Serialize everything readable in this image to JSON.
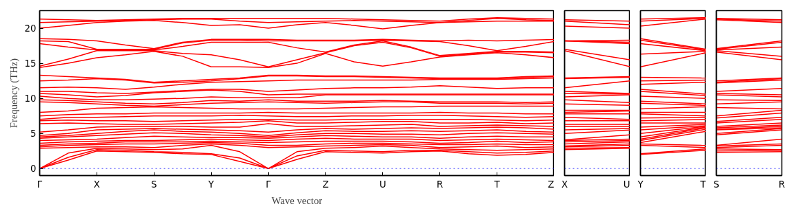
{
  "chart_data": [
    {
      "type": "line",
      "xlabel": "Wave vector",
      "ylabel": "Frequency (THz)",
      "grid": false,
      "marker": "none",
      "line_style": "solid",
      "categories": [
        "Γ",
        null,
        "X",
        null,
        "S",
        null,
        "Y",
        null,
        "Γ",
        null,
        "Z",
        null,
        "U",
        null,
        "R",
        null,
        "T",
        null,
        "Z"
      ],
      "ylim": [
        -1,
        22.5
      ],
      "yticks": [
        0,
        5,
        10,
        15,
        20
      ],
      "ref_lines": [
        {
          "axis": "y",
          "value": 0,
          "color": "#0000ff",
          "line_style": "dotted"
        }
      ],
      "series": [
        {
          "color": "#ff0000",
          "values": [
            0,
            1.2,
            2.5,
            2.4,
            2.3,
            2.1,
            2.0,
            1.0,
            0,
            1.3,
            2.4,
            2.3,
            2.2,
            2.4,
            2.5,
            2.1,
            1.9,
            2.0,
            2.3
          ]
        },
        {
          "color": "#ff0000",
          "values": [
            0,
            1.6,
            2.7,
            2.6,
            2.4,
            2.3,
            2.1,
            1.5,
            0,
            1.8,
            2.6,
            2.5,
            2.4,
            2.6,
            2.6,
            2.4,
            2.2,
            2.3,
            2.5
          ]
        },
        {
          "color": "#ff0000",
          "values": [
            0,
            2.2,
            2.9,
            2.8,
            2.7,
            2.8,
            3.3,
            2.4,
            0,
            2.4,
            2.9,
            3.0,
            3.2,
            3.0,
            2.8,
            2.7,
            2.6,
            2.7,
            2.8
          ]
        },
        {
          "color": "#ff0000",
          "values": [
            2.9,
            3.0,
            3.1,
            3.1,
            3.0,
            3.3,
            3.5,
            3.3,
            3.0,
            3.1,
            3.2,
            3.3,
            3.4,
            3.3,
            3.0,
            3.1,
            3.2,
            3.0,
            3.1
          ]
        },
        {
          "color": "#ff0000",
          "values": [
            3.1,
            3.3,
            3.4,
            3.5,
            3.5,
            3.6,
            3.7,
            3.6,
            3.3,
            3.3,
            3.5,
            3.6,
            3.6,
            3.5,
            3.4,
            3.4,
            3.5,
            3.4,
            3.4
          ]
        },
        {
          "color": "#ff0000",
          "values": [
            3.3,
            3.5,
            3.6,
            3.8,
            3.8,
            3.8,
            3.9,
            3.8,
            3.7,
            3.8,
            3.9,
            3.9,
            3.9,
            3.8,
            3.6,
            3.7,
            3.9,
            3.7,
            3.8
          ]
        },
        {
          "color": "#ff0000",
          "values": [
            3.6,
            3.8,
            3.9,
            4.0,
            4.0,
            4.1,
            4.2,
            4.1,
            4.0,
            4.2,
            4.3,
            4.2,
            4.2,
            4.2,
            4.0,
            4.1,
            4.2,
            4.1,
            4.0
          ]
        },
        {
          "color": "#ff0000",
          "values": [
            4.0,
            4.1,
            4.2,
            4.4,
            4.6,
            4.5,
            4.4,
            4.4,
            4.3,
            4.5,
            4.7,
            4.6,
            4.5,
            4.5,
            4.3,
            4.5,
            4.6,
            4.5,
            4.5
          ]
        },
        {
          "color": "#ff0000",
          "values": [
            4.3,
            4.5,
            4.7,
            4.9,
            5.1,
            5.0,
            4.8,
            4.7,
            4.5,
            4.8,
            5.0,
            5.0,
            4.9,
            4.9,
            4.8,
            5.0,
            5.1,
            5.0,
            4.9
          ]
        },
        {
          "color": "#ff0000",
          "values": [
            4.5,
            4.7,
            5.0,
            5.3,
            5.5,
            5.3,
            5.2,
            5.0,
            4.7,
            5.1,
            5.4,
            5.3,
            5.3,
            5.4,
            5.3,
            5.4,
            5.5,
            5.3,
            5.2
          ]
        },
        {
          "color": "#ff0000",
          "values": [
            4.7,
            5.0,
            5.5,
            5.6,
            5.7,
            5.6,
            5.5,
            5.4,
            5.2,
            5.5,
            5.7,
            5.6,
            5.7,
            5.8,
            5.7,
            5.8,
            5.9,
            5.8,
            5.6
          ]
        },
        {
          "color": "#ff0000",
          "values": [
            5.2,
            5.5,
            5.9,
            6.0,
            6.0,
            6.0,
            5.9,
            5.9,
            6.4,
            6.0,
            6.0,
            6.1,
            6.2,
            6.3,
            6.0,
            6.1,
            6.2,
            6.1,
            6.0
          ]
        },
        {
          "color": "#ff0000",
          "values": [
            6.4,
            6.5,
            6.4,
            6.3,
            6.3,
            6.4,
            6.5,
            6.6,
            6.8,
            6.5,
            6.5,
            6.6,
            6.7,
            6.7,
            6.5,
            6.5,
            6.6,
            6.4,
            6.5
          ]
        },
        {
          "color": "#ff0000",
          "values": [
            6.8,
            6.9,
            6.8,
            6.8,
            6.7,
            6.8,
            6.9,
            7.0,
            7.0,
            6.9,
            6.9,
            7.0,
            7.0,
            7.0,
            7.0,
            7.0,
            6.9,
            6.8,
            6.9
          ]
        },
        {
          "color": "#ff0000",
          "values": [
            7.0,
            7.3,
            7.3,
            7.4,
            7.5,
            7.5,
            7.5,
            7.6,
            7.5,
            7.4,
            7.4,
            7.5,
            7.5,
            7.6,
            7.6,
            7.5,
            7.4,
            7.3,
            7.4
          ]
        },
        {
          "color": "#ff0000",
          "values": [
            7.5,
            7.7,
            7.8,
            7.8,
            7.9,
            7.9,
            7.9,
            7.9,
            8.0,
            7.9,
            7.9,
            7.9,
            7.9,
            7.9,
            8.0,
            7.9,
            7.9,
            7.8,
            7.8
          ]
        },
        {
          "color": "#ff0000",
          "values": [
            8.0,
            8.2,
            8.6,
            8.7,
            8.8,
            8.7,
            8.6,
            8.5,
            8.5,
            8.5,
            8.6,
            8.7,
            8.8,
            8.8,
            8.9,
            8.9,
            8.9,
            8.9,
            8.9
          ]
        },
        {
          "color": "#ff0000",
          "values": [
            9.5,
            9.4,
            9.2,
            9.0,
            8.9,
            9.1,
            9.3,
            9.4,
            9.5,
            9.4,
            9.3,
            9.4,
            9.5,
            9.5,
            9.3,
            9.3,
            9.3,
            9.2,
            9.3
          ]
        },
        {
          "color": "#ff0000",
          "values": [
            9.8,
            9.7,
            9.5,
            9.3,
            9.2,
            9.4,
            9.7,
            9.6,
            9.8,
            9.6,
            9.6,
            9.6,
            9.7,
            9.6,
            9.5,
            9.5,
            9.5,
            9.4,
            9.5
          ]
        },
        {
          "color": "#ff0000",
          "values": [
            10.3,
            10.0,
            9.8,
            9.8,
            9.9,
            10.0,
            10.2,
            10.1,
            10.1,
            10.1,
            10.5,
            10.5,
            10.5,
            10.5,
            10.5,
            10.5,
            10.5,
            10.5,
            10.5
          ]
        },
        {
          "color": "#ff0000",
          "values": [
            10.7,
            10.5,
            10.2,
            10.4,
            10.8,
            11.0,
            11.2,
            11.0,
            10.5,
            10.6,
            10.6,
            10.6,
            10.6,
            10.6,
            10.6,
            10.6,
            10.6,
            10.6,
            10.6
          ]
        },
        {
          "color": "#ff0000",
          "values": [
            11.0,
            11.0,
            10.8,
            10.7,
            10.9,
            11.1,
            11.3,
            11.3,
            11.0,
            11.2,
            11.4,
            11.5,
            11.5,
            11.6,
            11.8,
            11.6,
            11.4,
            11.5,
            11.5
          ]
        },
        {
          "color": "#ff0000",
          "values": [
            11.5,
            11.6,
            11.5,
            11.3,
            11.6,
            12.0,
            12.3,
            12.4,
            12.5,
            12.6,
            12.6,
            12.6,
            12.6,
            12.6,
            12.7,
            12.7,
            12.7,
            12.8,
            12.9
          ]
        },
        {
          "color": "#ff0000",
          "values": [
            12.5,
            12.6,
            12.8,
            12.6,
            12.2,
            12.3,
            12.5,
            12.8,
            13.2,
            13.2,
            13.1,
            13.1,
            13.0,
            12.9,
            12.8,
            12.8,
            12.8,
            13.0,
            13.1
          ]
        },
        {
          "color": "#ff0000",
          "values": [
            13.3,
            13.1,
            12.9,
            12.7,
            12.3,
            12.5,
            12.7,
            12.9,
            13.3,
            13.3,
            13.2,
            13.2,
            13.1,
            13.0,
            12.9,
            12.9,
            12.9,
            13.1,
            13.2
          ]
        },
        {
          "color": "#ff0000",
          "values": [
            14.4,
            15.0,
            15.8,
            16.2,
            16.7,
            16.0,
            14.5,
            14.5,
            14.4,
            15.0,
            16.4,
            15.2,
            14.6,
            15.2,
            15.9,
            16.2,
            16.5,
            16.2,
            15.8
          ]
        },
        {
          "color": "#ff0000",
          "values": [
            14.6,
            15.6,
            16.8,
            16.8,
            16.8,
            16.4,
            16.2,
            15.5,
            14.5,
            15.5,
            16.5,
            17.5,
            18.0,
            17.2,
            16.0,
            16.3,
            16.6,
            16.6,
            16.5
          ]
        },
        {
          "color": "#ff0000",
          "values": [
            17.8,
            17.3,
            16.9,
            16.9,
            16.9,
            17.4,
            18.0,
            18.0,
            18.0,
            17.2,
            16.6,
            17.6,
            18.2,
            17.3,
            16.1,
            16.4,
            16.7,
            16.7,
            16.6
          ]
        },
        {
          "color": "#ff0000",
          "values": [
            18.2,
            18.1,
            17.0,
            17.0,
            17.0,
            17.9,
            18.3,
            18.3,
            18.2,
            18.2,
            18.2,
            18.2,
            18.3,
            18.2,
            18.1,
            17.5,
            16.8,
            17.4,
            18.1
          ]
        },
        {
          "color": "#ff0000",
          "values": [
            18.5,
            18.4,
            18.2,
            17.6,
            17.1,
            18.0,
            18.4,
            18.4,
            18.4,
            18.3,
            18.3,
            18.3,
            18.4,
            18.3,
            18.2,
            18.3,
            18.2,
            18.3,
            18.4
          ]
        },
        {
          "color": "#ff0000",
          "values": [
            20.0,
            20.4,
            20.8,
            21.0,
            21.1,
            20.8,
            20.4,
            20.5,
            20.0,
            20.5,
            20.8,
            20.4,
            19.9,
            20.4,
            20.8,
            20.9,
            21.0,
            21.0,
            21.0
          ]
        },
        {
          "color": "#ff0000",
          "values": [
            20.8,
            20.9,
            21.0,
            21.1,
            21.2,
            21.3,
            21.3,
            21.0,
            20.8,
            20.9,
            21.0,
            21.1,
            21.0,
            20.9,
            20.8,
            21.1,
            21.4,
            21.2,
            21.1
          ]
        },
        {
          "color": "#ff0000",
          "values": [
            21.3,
            21.2,
            21.1,
            21.2,
            21.3,
            21.4,
            21.4,
            21.4,
            21.4,
            21.4,
            21.4,
            21.3,
            21.2,
            21.1,
            21.0,
            21.3,
            21.5,
            21.4,
            21.3
          ]
        }
      ]
    },
    {
      "type": "line",
      "marker": "none",
      "line_style": "solid",
      "tick_labels": "x",
      "categories": [
        "X",
        "U"
      ],
      "ylim": [
        -1,
        22.5
      ],
      "yticks": [
        0,
        5,
        10,
        15,
        20
      ],
      "ref_lines": [
        {
          "axis": "y",
          "value": 0,
          "color": "#0000ff",
          "line_style": "dotted"
        }
      ],
      "series": [
        {
          "color": "#ff0000",
          "values": [
            2.7,
            2.9
          ]
        },
        {
          "color": "#ff0000",
          "values": [
            2.9,
            3.0
          ]
        },
        {
          "color": "#ff0000",
          "values": [
            3.1,
            3.3
          ]
        },
        {
          "color": "#ff0000",
          "values": [
            3.2,
            3.5
          ]
        },
        {
          "color": "#ff0000",
          "values": [
            3.5,
            3.8
          ]
        },
        {
          "color": "#ff0000",
          "values": [
            3.8,
            4.0
          ]
        },
        {
          "color": "#ff0000",
          "values": [
            4.0,
            4.2
          ]
        },
        {
          "color": "#ff0000",
          "values": [
            4.1,
            4.8
          ]
        },
        {
          "color": "#ff0000",
          "values": [
            5.0,
            5.5
          ]
        },
        {
          "color": "#ff0000",
          "values": [
            5.5,
            5.7
          ]
        },
        {
          "color": "#ff0000",
          "values": [
            6.0,
            6.0
          ]
        },
        {
          "color": "#ff0000",
          "values": [
            6.3,
            6.3
          ]
        },
        {
          "color": "#ff0000",
          "values": [
            6.8,
            6.8
          ]
        },
        {
          "color": "#ff0000",
          "values": [
            7.3,
            7.0
          ]
        },
        {
          "color": "#ff0000",
          "values": [
            7.8,
            7.8
          ]
        },
        {
          "color": "#ff0000",
          "values": [
            8.0,
            8.2
          ]
        },
        {
          "color": "#ff0000",
          "values": [
            8.3,
            8.3
          ]
        },
        {
          "color": "#ff0000",
          "values": [
            9.2,
            9.0
          ]
        },
        {
          "color": "#ff0000",
          "values": [
            9.8,
            9.4
          ]
        },
        {
          "color": "#ff0000",
          "values": [
            10.2,
            10.5
          ]
        },
        {
          "color": "#ff0000",
          "values": [
            10.7,
            10.6
          ]
        },
        {
          "color": "#ff0000",
          "values": [
            11.0,
            10.7
          ]
        },
        {
          "color": "#ff0000",
          "values": [
            11.5,
            12.5
          ]
        },
        {
          "color": "#ff0000",
          "values": [
            12.8,
            13.0
          ]
        },
        {
          "color": "#ff0000",
          "values": [
            12.9,
            13.1
          ]
        },
        {
          "color": "#ff0000",
          "values": [
            16.8,
            14.5
          ]
        },
        {
          "color": "#ff0000",
          "values": [
            17.0,
            15.5
          ]
        },
        {
          "color": "#ff0000",
          "values": [
            18.2,
            17.8
          ]
        },
        {
          "color": "#ff0000",
          "values": [
            18.2,
            18.0
          ]
        },
        {
          "color": "#ff0000",
          "values": [
            18.2,
            18.3
          ]
        },
        {
          "color": "#ff0000",
          "values": [
            20.3,
            20.0
          ]
        },
        {
          "color": "#ff0000",
          "values": [
            21.0,
            20.5
          ]
        },
        {
          "color": "#ff0000",
          "values": [
            21.2,
            21.0
          ]
        }
      ]
    },
    {
      "type": "line",
      "marker": "none",
      "line_style": "solid",
      "tick_labels": "x",
      "categories": [
        "Y",
        "T"
      ],
      "ylim": [
        -1,
        22.5
      ],
      "yticks": [
        0,
        5,
        10,
        15,
        20
      ],
      "ref_lines": [
        {
          "axis": "y",
          "value": 0,
          "color": "#0000ff",
          "line_style": "dotted"
        }
      ],
      "series": [
        {
          "color": "#ff0000",
          "values": [
            2.0,
            2.6
          ]
        },
        {
          "color": "#ff0000",
          "values": [
            2.1,
            2.8
          ]
        },
        {
          "color": "#ff0000",
          "values": [
            3.3,
            3.0
          ]
        },
        {
          "color": "#ff0000",
          "values": [
            3.5,
            3.3
          ]
        },
        {
          "color": "#ff0000",
          "values": [
            3.7,
            5.3
          ]
        },
        {
          "color": "#ff0000",
          "values": [
            4.0,
            5.6
          ]
        },
        {
          "color": "#ff0000",
          "values": [
            4.2,
            5.8
          ]
        },
        {
          "color": "#ff0000",
          "values": [
            4.5,
            5.9
          ]
        },
        {
          "color": "#ff0000",
          "values": [
            5.0,
            6.0
          ]
        },
        {
          "color": "#ff0000",
          "values": [
            5.5,
            6.1
          ]
        },
        {
          "color": "#ff0000",
          "values": [
            5.9,
            6.3
          ]
        },
        {
          "color": "#ff0000",
          "values": [
            6.5,
            6.5
          ]
        },
        {
          "color": "#ff0000",
          "values": [
            6.8,
            7.0
          ]
        },
        {
          "color": "#ff0000",
          "values": [
            7.2,
            7.3
          ]
        },
        {
          "color": "#ff0000",
          "values": [
            7.8,
            7.5
          ]
        },
        {
          "color": "#ff0000",
          "values": [
            8.0,
            8.0
          ]
        },
        {
          "color": "#ff0000",
          "values": [
            8.5,
            8.8
          ]
        },
        {
          "color": "#ff0000",
          "values": [
            9.3,
            9.0
          ]
        },
        {
          "color": "#ff0000",
          "values": [
            9.6,
            9.2
          ]
        },
        {
          "color": "#ff0000",
          "values": [
            10.3,
            10.0
          ]
        },
        {
          "color": "#ff0000",
          "values": [
            11.0,
            10.4
          ]
        },
        {
          "color": "#ff0000",
          "values": [
            11.3,
            10.6
          ]
        },
        {
          "color": "#ff0000",
          "values": [
            12.0,
            12.3
          ]
        },
        {
          "color": "#ff0000",
          "values": [
            12.5,
            12.6
          ]
        },
        {
          "color": "#ff0000",
          "values": [
            13.0,
            12.9
          ]
        },
        {
          "color": "#ff0000",
          "values": [
            14.5,
            16.5
          ]
        },
        {
          "color": "#ff0000",
          "values": [
            16.3,
            16.7
          ]
        },
        {
          "color": "#ff0000",
          "values": [
            17.8,
            16.8
          ]
        },
        {
          "color": "#ff0000",
          "values": [
            18.3,
            16.9
          ]
        },
        {
          "color": "#ff0000",
          "values": [
            18.5,
            17.0
          ]
        },
        {
          "color": "#ff0000",
          "values": [
            20.3,
            21.3
          ]
        },
        {
          "color": "#ff0000",
          "values": [
            21.0,
            21.4
          ]
        },
        {
          "color": "#ff0000",
          "values": [
            21.3,
            21.5
          ]
        }
      ]
    },
    {
      "type": "line",
      "marker": "none",
      "line_style": "solid",
      "tick_labels": "x",
      "categories": [
        "S",
        "R"
      ],
      "ylim": [
        -1,
        22.5
      ],
      "yticks": [
        0,
        5,
        10,
        15,
        20
      ],
      "ref_lines": [
        {
          "axis": "y",
          "value": 0,
          "color": "#0000ff",
          "line_style": "dotted"
        }
      ],
      "series": [
        {
          "color": "#ff0000",
          "values": [
            2.3,
            2.4
          ]
        },
        {
          "color": "#ff0000",
          "values": [
            2.5,
            2.6
          ]
        },
        {
          "color": "#ff0000",
          "values": [
            2.8,
            2.7
          ]
        },
        {
          "color": "#ff0000",
          "values": [
            3.0,
            3.3
          ]
        },
        {
          "color": "#ff0000",
          "values": [
            3.2,
            3.5
          ]
        },
        {
          "color": "#ff0000",
          "values": [
            3.3,
            4.2
          ]
        },
        {
          "color": "#ff0000",
          "values": [
            4.8,
            5.5
          ]
        },
        {
          "color": "#ff0000",
          "values": [
            5.0,
            5.7
          ]
        },
        {
          "color": "#ff0000",
          "values": [
            5.5,
            5.8
          ]
        },
        {
          "color": "#ff0000",
          "values": [
            5.6,
            6.0
          ]
        },
        {
          "color": "#ff0000",
          "values": [
            5.8,
            6.2
          ]
        },
        {
          "color": "#ff0000",
          "values": [
            6.0,
            6.5
          ]
        },
        {
          "color": "#ff0000",
          "values": [
            6.5,
            7.0
          ]
        },
        {
          "color": "#ff0000",
          "values": [
            6.7,
            7.3
          ]
        },
        {
          "color": "#ff0000",
          "values": [
            7.2,
            7.9
          ]
        },
        {
          "color": "#ff0000",
          "values": [
            7.5,
            8.3
          ]
        },
        {
          "color": "#ff0000",
          "values": [
            8.7,
            8.5
          ]
        },
        {
          "color": "#ff0000",
          "values": [
            9.2,
            9.5
          ]
        },
        {
          "color": "#ff0000",
          "values": [
            9.8,
            9.7
          ]
        },
        {
          "color": "#ff0000",
          "values": [
            10.5,
            10.2
          ]
        },
        {
          "color": "#ff0000",
          "values": [
            10.7,
            10.5
          ]
        },
        {
          "color": "#ff0000",
          "values": [
            11.0,
            11.4
          ]
        },
        {
          "color": "#ff0000",
          "values": [
            12.2,
            12.6
          ]
        },
        {
          "color": "#ff0000",
          "values": [
            12.3,
            12.8
          ]
        },
        {
          "color": "#ff0000",
          "values": [
            12.5,
            12.9
          ]
        },
        {
          "color": "#ff0000",
          "values": [
            16.6,
            15.5
          ]
        },
        {
          "color": "#ff0000",
          "values": [
            16.8,
            16.0
          ]
        },
        {
          "color": "#ff0000",
          "values": [
            16.9,
            17.3
          ]
        },
        {
          "color": "#ff0000",
          "values": [
            17.0,
            18.0
          ]
        },
        {
          "color": "#ff0000",
          "values": [
            17.1,
            18.2
          ]
        },
        {
          "color": "#ff0000",
          "values": [
            21.2,
            20.8
          ]
        },
        {
          "color": "#ff0000",
          "values": [
            21.3,
            21.0
          ]
        },
        {
          "color": "#ff0000",
          "values": [
            21.4,
            21.2
          ]
        }
      ]
    }
  ]
}
